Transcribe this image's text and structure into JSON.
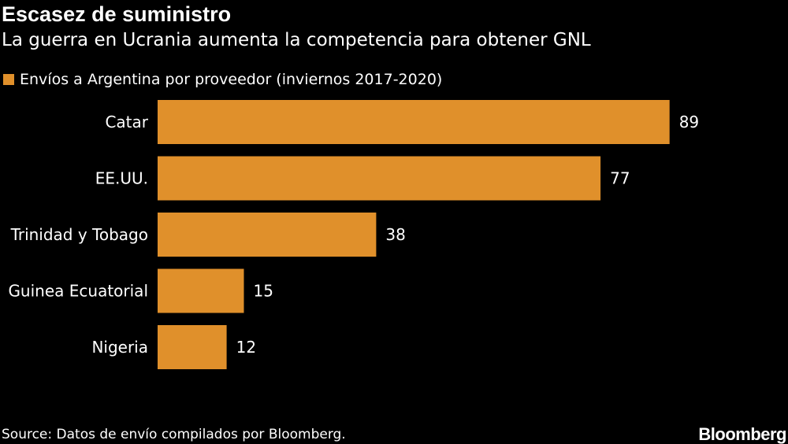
{
  "colors": {
    "background": "#000000",
    "bar": "#e0902b",
    "text": "#ffffff"
  },
  "brand": {
    "logo_text": "Bloomberg"
  },
  "chart_data": {
    "type": "bar",
    "orientation": "horizontal",
    "title": "Escasez de suministro",
    "subtitle": "La guerra en Ucrania aumenta la competencia para obtener GNL",
    "series": [
      {
        "name": "Envíos a Argentina por proveedor (inviernos 2017-2020)",
        "values": [
          89,
          77,
          38,
          15,
          12
        ]
      }
    ],
    "categories": [
      "Catar",
      "EE.UU.",
      "Trinidad y Tobago",
      "Guinea Ecuatorial",
      "Nigeria"
    ],
    "value_labels": [
      "89",
      "77",
      "38",
      "15",
      "12"
    ],
    "xlim": [
      0,
      100
    ],
    "grid": false,
    "legend_position": "top-left",
    "source": "Source: Datos de envío compilados por Bloomberg."
  }
}
